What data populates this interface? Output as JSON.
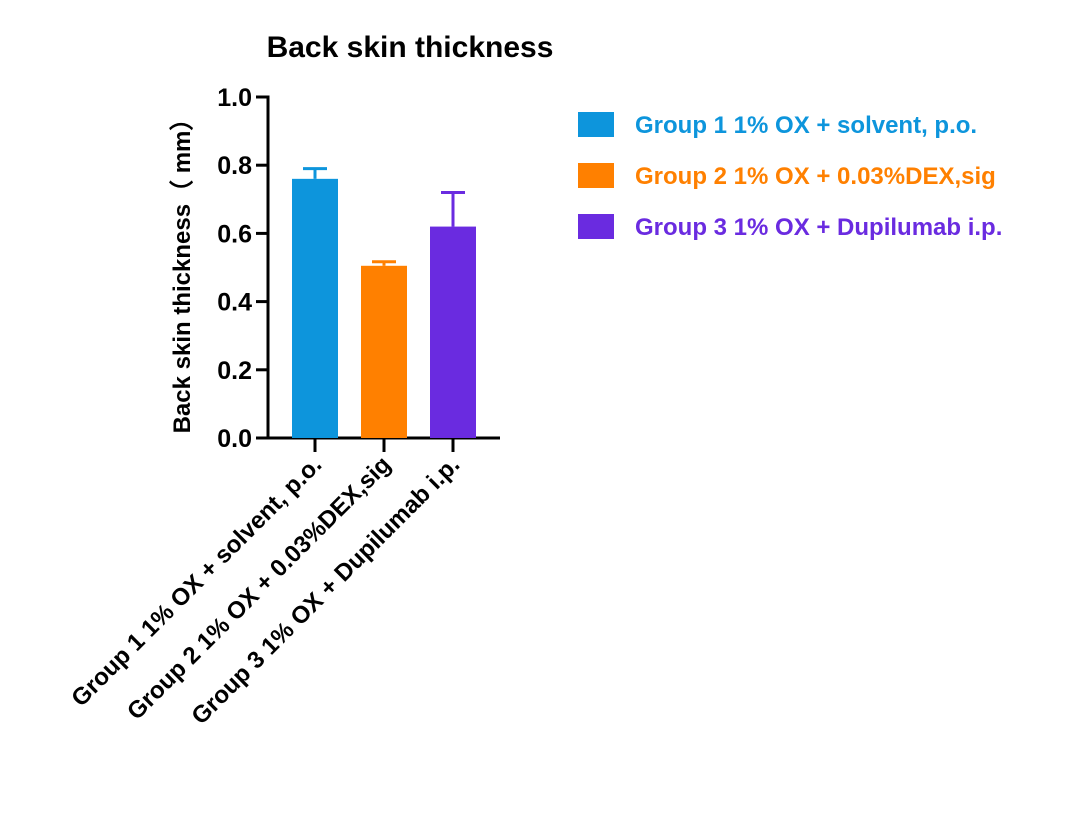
{
  "chart_data": {
    "type": "bar",
    "title": "Back skin thickness",
    "xlabel": "",
    "ylabel": "Back skin thickness（ mm）",
    "ylim": [
      0,
      1.0
    ],
    "yticks": [
      "0.0",
      "0.2",
      "0.4",
      "0.6",
      "0.8",
      "1.0"
    ],
    "ytick_values": [
      0,
      0.2,
      0.4,
      0.6,
      0.8,
      1.0
    ],
    "categories": [
      "Group 1 1% OX + solvent, p.o.",
      "Group 2 1% OX + 0.03%DEX,sig",
      "Group 3 1% OX + Dupilumab i.p."
    ],
    "values": [
      0.76,
      0.505,
      0.62
    ],
    "error_upper": [
      0.03,
      0.012,
      0.1
    ],
    "colors": [
      "#0d95dc",
      "#ff8000",
      "#6a2be0"
    ],
    "legend": {
      "position": "right",
      "entries": [
        "Group 1 1% OX + solvent, p.o.",
        "Group 2 1% OX + 0.03%DEX,sig",
        "Group 3 1% OX + Dupilumab i.p."
      ]
    },
    "grid": false
  }
}
